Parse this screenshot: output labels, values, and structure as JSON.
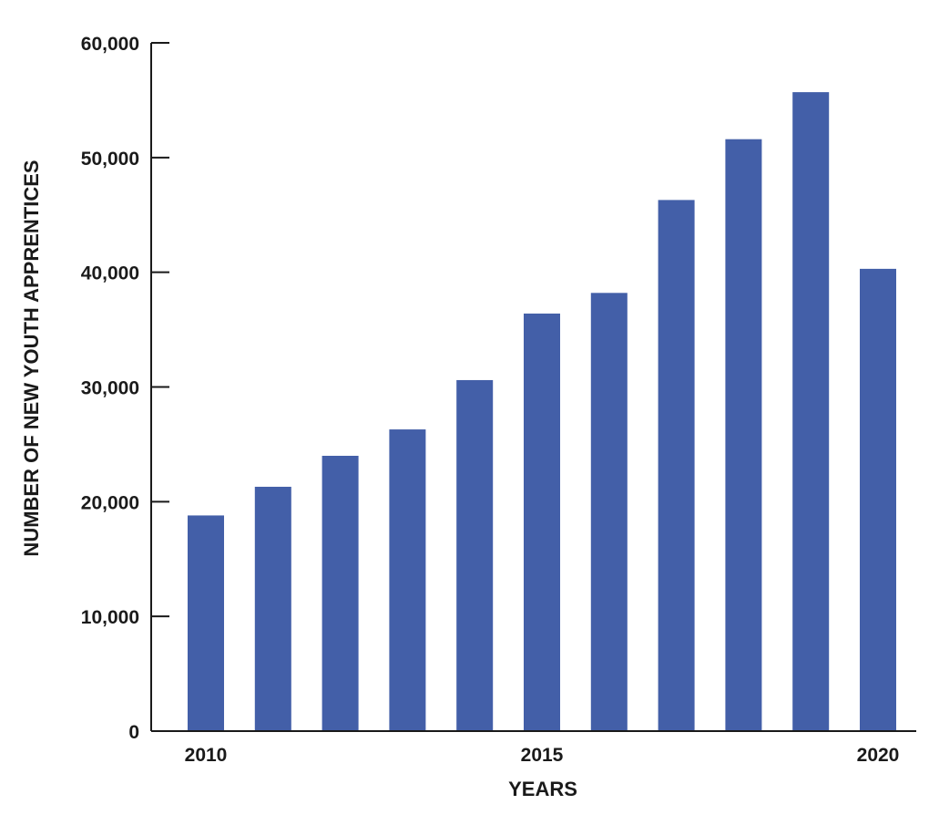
{
  "chart_data": {
    "type": "bar",
    "title": "",
    "xlabel": "YEARS",
    "ylabel": "NUMBER OF NEW YOUTH APPRENTICES",
    "categories": [
      2010,
      2011,
      2012,
      2013,
      2014,
      2015,
      2016,
      2017,
      2018,
      2019,
      2020
    ],
    "x_tick_labels": [
      "2010",
      "2015",
      "2020"
    ],
    "x_tick_values": [
      2010,
      2015,
      2020
    ],
    "values": [
      18800,
      21300,
      24000,
      26300,
      30600,
      36400,
      38200,
      46300,
      51600,
      55700,
      40300
    ],
    "y_tick_values": [
      0,
      10000,
      20000,
      30000,
      40000,
      50000,
      60000
    ],
    "y_tick_labels": [
      "0",
      "10,000",
      "20,000",
      "30,000",
      "40,000",
      "50,000",
      "60,000"
    ],
    "ylim": [
      0,
      60000
    ],
    "bar_color": "#435fa8",
    "grid": false,
    "legend": "none"
  }
}
